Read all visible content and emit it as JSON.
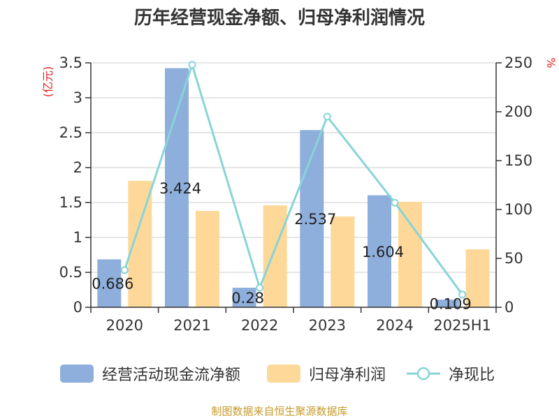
{
  "chart_data": {
    "type": "bar",
    "title": "历年经营现金净额、归母净利润情况",
    "categories": [
      "2020",
      "2021",
      "2022",
      "2023",
      "2024",
      "2025H1"
    ],
    "left_axis": {
      "unit": "(亿元)",
      "ylim": [
        0,
        3.5
      ],
      "ticks": [
        "0",
        "0.5",
        "1",
        "1.5",
        "2",
        "2.5",
        "3",
        "3.5"
      ]
    },
    "right_axis": {
      "unit": "%",
      "ylim": [
        0,
        250
      ],
      "ticks": [
        "0",
        "50",
        "100",
        "150",
        "200",
        "250"
      ]
    },
    "series": [
      {
        "name": "经营活动现金流净额",
        "kind": "bar",
        "axis": "left",
        "color": "#8eaedb",
        "values": [
          0.686,
          3.424,
          0.28,
          2.537,
          1.604,
          0.109
        ],
        "labels": [
          "0.686",
          "3.424",
          "0.28",
          "2.537",
          "1.604",
          "0.109"
        ]
      },
      {
        "name": "归母净利润",
        "kind": "bar",
        "axis": "left",
        "color": "#fdd899",
        "values": [
          1.81,
          1.38,
          1.46,
          1.3,
          1.51,
          0.83
        ]
      },
      {
        "name": "净现比",
        "kind": "line",
        "axis": "right",
        "color": "#88d4d8",
        "values": [
          38,
          248,
          20,
          195,
          107,
          13
        ]
      }
    ],
    "grid": true,
    "legend": "bottom"
  },
  "footer": {
    "source": "制图数据来自恒生聚源数据库"
  }
}
